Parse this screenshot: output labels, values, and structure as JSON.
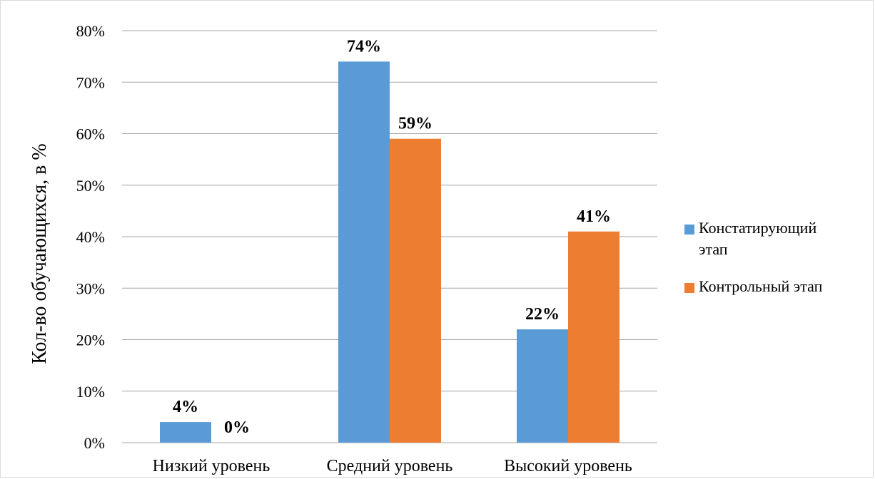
{
  "chart_data": {
    "type": "bar",
    "categories": [
      "Низкий уровень",
      "Средний уровень",
      "Высокий уровень"
    ],
    "series": [
      {
        "name": "Констатирующий этап",
        "values": [
          4,
          74,
          22
        ],
        "color": "#5b9bd5"
      },
      {
        "name": "Контрольный этап",
        "values": [
          0,
          59,
          41
        ],
        "color": "#ed7d31"
      }
    ],
    "data_labels": [
      [
        "4%",
        "74%",
        "22%"
      ],
      [
        "0%",
        "59%",
        "41%"
      ]
    ],
    "ylabel": "Кол-во обучающихся, в %",
    "ylim": [
      0,
      80
    ],
    "yticks": [
      0,
      10,
      20,
      30,
      40,
      50,
      60,
      70,
      80
    ],
    "ytick_labels": [
      "0%",
      "10%",
      "20%",
      "30%",
      "40%",
      "50%",
      "60%",
      "70%",
      "80%"
    ],
    "legend_entries": [
      [
        "Констатирующий",
        "этап"
      ],
      [
        "Контрольный этап"
      ]
    ],
    "grid": true,
    "legend": "right",
    "gridline_color": "#a6a6a6"
  }
}
